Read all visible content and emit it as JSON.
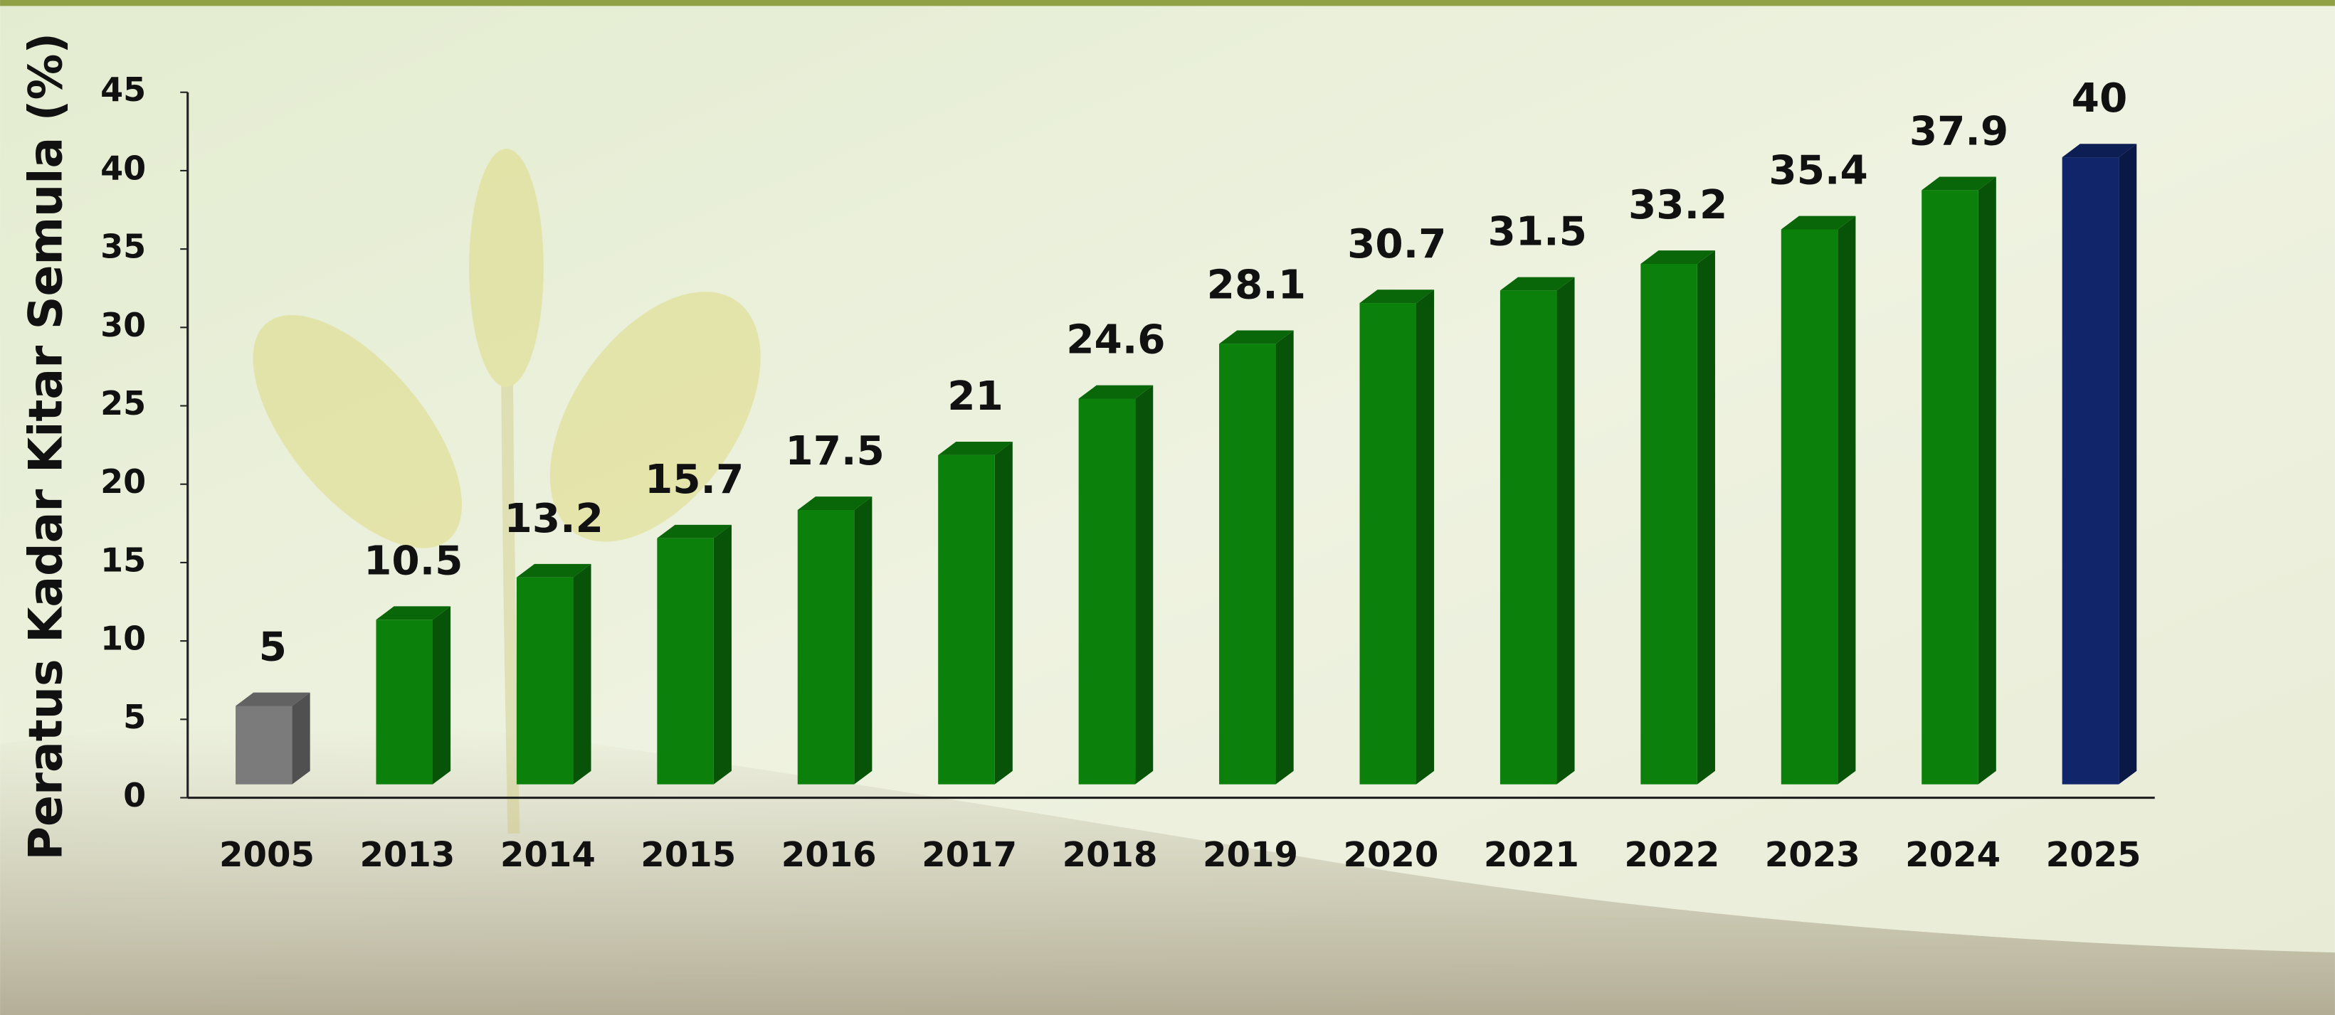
{
  "chart_data": {
    "type": "bar3d",
    "y_label": "Peratus Kadar Kitar Semula (%)",
    "categories": [
      "2005",
      "2013",
      "2014",
      "2015",
      "2016",
      "2017",
      "2018",
      "2019",
      "2020",
      "2021",
      "2022",
      "2023",
      "2024",
      "2025"
    ],
    "values": [
      5,
      10.5,
      13.2,
      15.7,
      17.5,
      21,
      24.6,
      28.1,
      30.7,
      31.5,
      33.2,
      35.4,
      37.9,
      40
    ],
    "colors": [
      "#7b7b7b",
      "#0b800b",
      "#0b800b",
      "#0b800b",
      "#0b800b",
      "#0b800b",
      "#0b800b",
      "#0b800b",
      "#0b800b",
      "#0b800b",
      "#0b800b",
      "#0b800b",
      "#0b800b",
      "#10256a"
    ],
    "ylim": [
      0,
      45
    ],
    "yticks": [
      0,
      5,
      10,
      15,
      20,
      25,
      30,
      35,
      40,
      45
    ],
    "grid": false
  }
}
